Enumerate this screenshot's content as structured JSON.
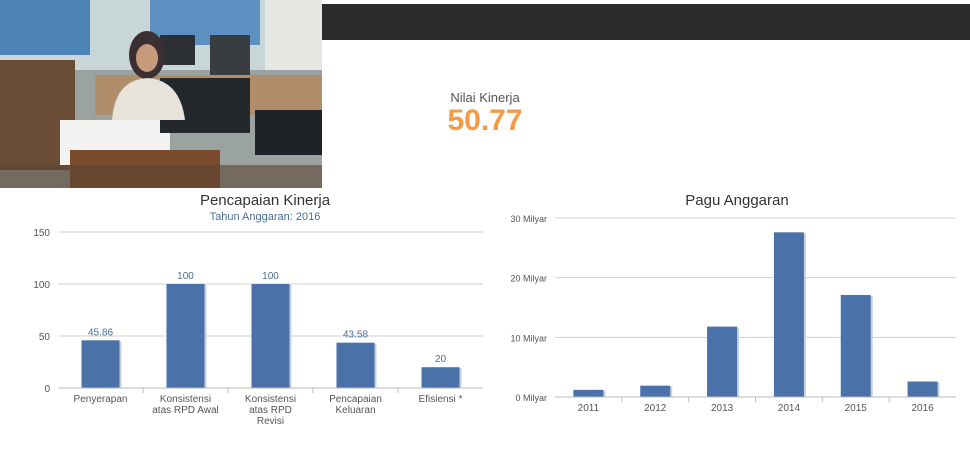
{
  "kpi": {
    "label": "Nilai Kinerja",
    "value": "50.77"
  },
  "colors": {
    "bar": "#4a72a8",
    "accent": "#f39c45",
    "topbar": "#2b2b2b"
  },
  "photo": {
    "description": "photo-of-staff-at-desk"
  },
  "chart_data": [
    {
      "type": "bar",
      "title": "Pencapaian Kinerja",
      "subtitle": "Tahun Anggaran: 2016",
      "categories": [
        [
          "Penyerapan"
        ],
        [
          "Konsistensi",
          "atas RPD Awal"
        ],
        [
          "Konsistensi",
          "atas RPD",
          "Revisi"
        ],
        [
          "Pencapaian",
          "Keluaran"
        ],
        [
          "Efisiensi *"
        ]
      ],
      "values": [
        45.86,
        100,
        100,
        43.58,
        20
      ],
      "data_labels": [
        "45.86",
        "100",
        "100",
        "43.58",
        "20"
      ],
      "yticks": [
        0,
        50,
        100,
        150
      ],
      "ylim": [
        0,
        150
      ],
      "grid": true
    },
    {
      "type": "bar",
      "title": "Pagu Anggaran",
      "categories": [
        "2011",
        "2012",
        "2013",
        "2014",
        "2015",
        "2016"
      ],
      "values": [
        1.2,
        1.9,
        11.8,
        27.6,
        17.1,
        2.6
      ],
      "yticks": [
        0,
        10,
        20,
        30
      ],
      "ytick_labels": [
        "0 Milyar",
        "10 Milyar",
        "20 Milyar",
        "30 Milyar"
      ],
      "ylim": [
        0,
        30
      ],
      "grid": true
    }
  ]
}
